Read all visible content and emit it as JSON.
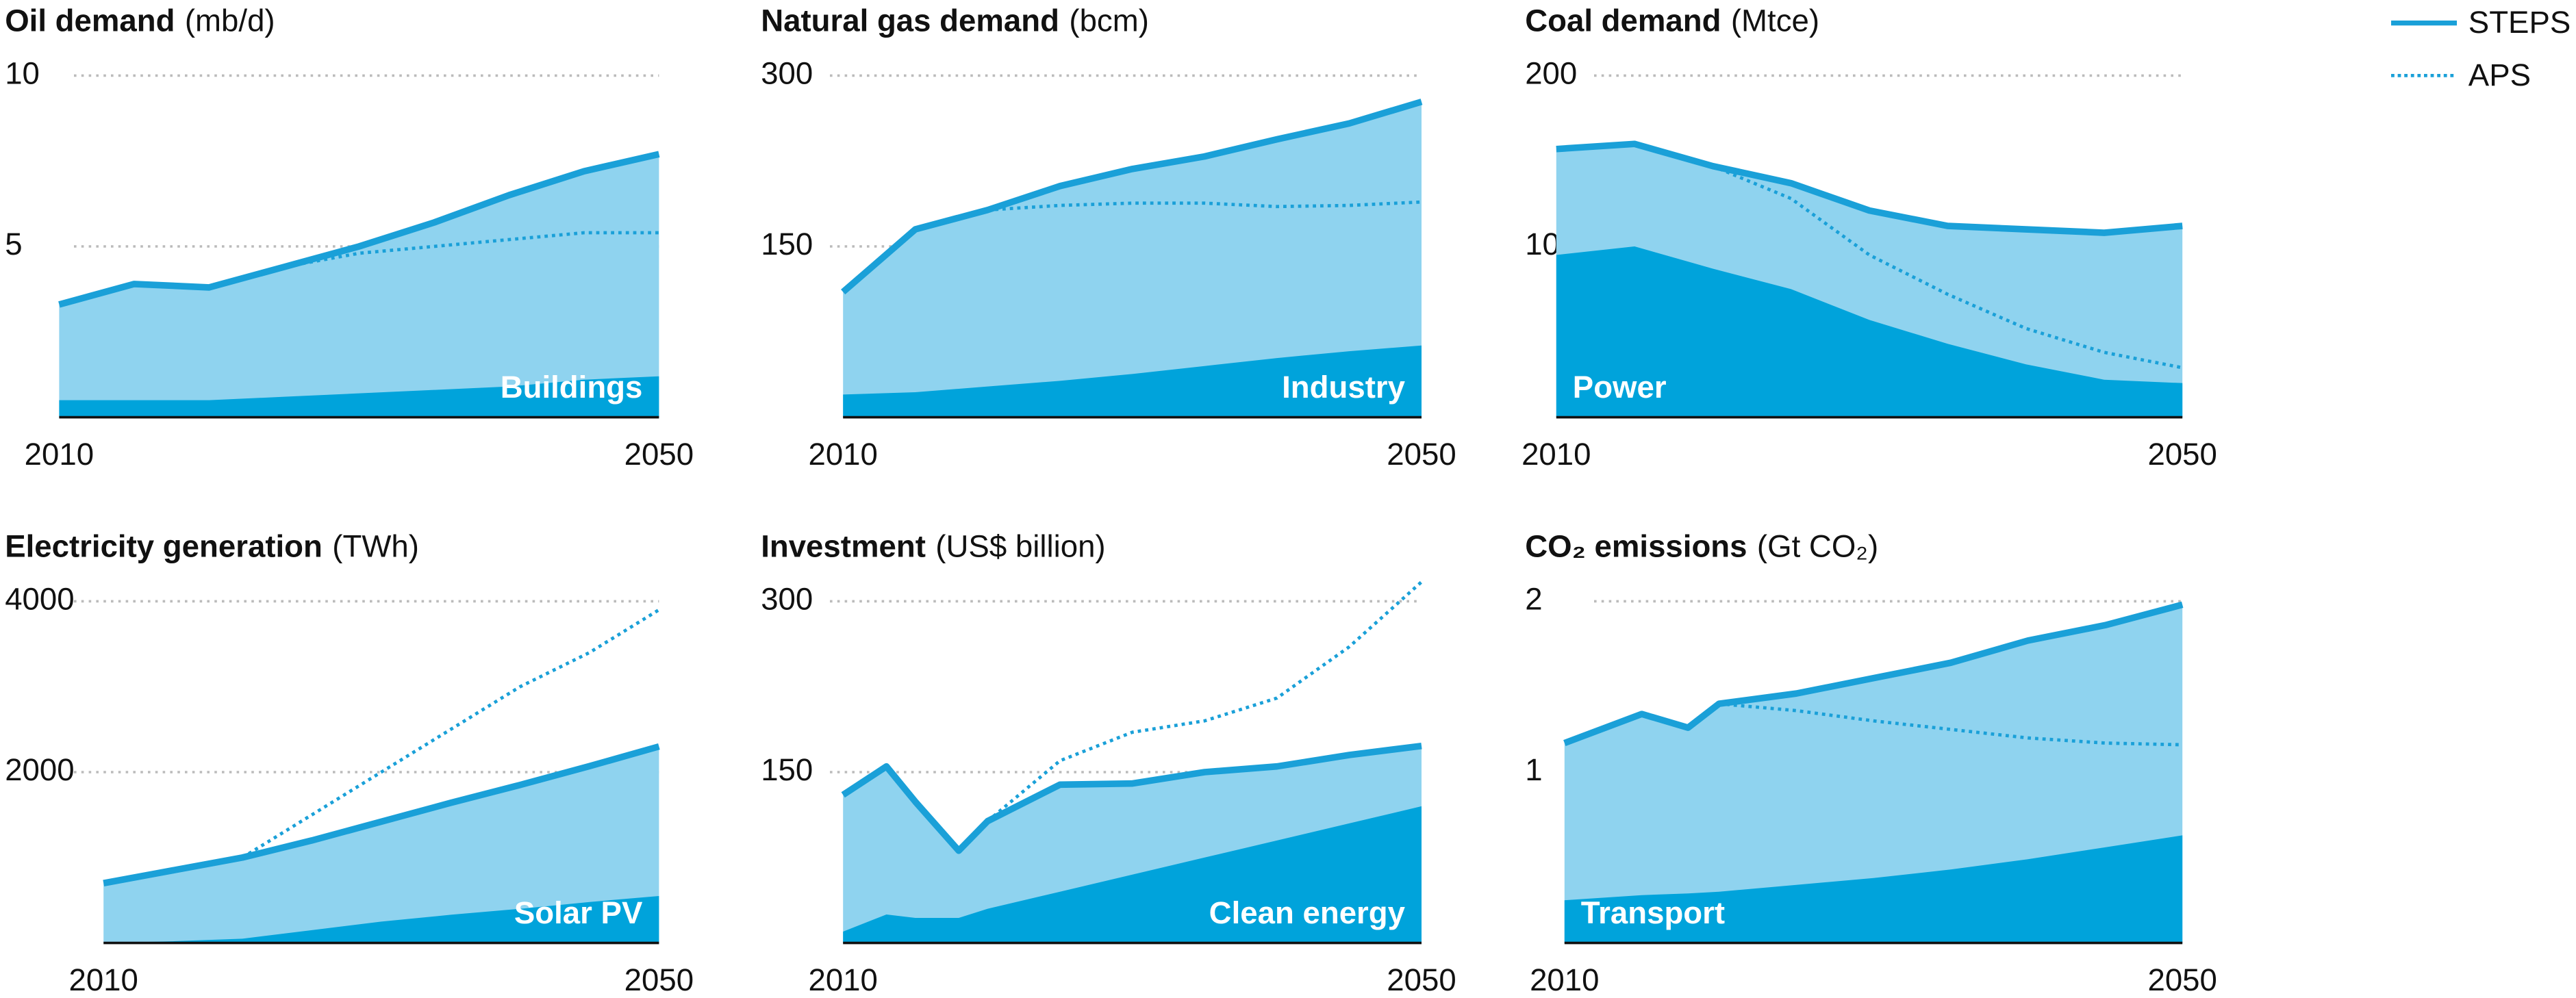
{
  "chart_data": [
    {
      "type": "area",
      "title": "Oil demand",
      "unit": "(mb/d)",
      "label_position": "right",
      "x": [
        2010,
        2015,
        2020,
        2025,
        2030,
        2035,
        2040,
        2045,
        2050
      ],
      "xlim": [
        2010,
        2050
      ],
      "xticks": [
        2010,
        2050
      ],
      "ylim": [
        0,
        10
      ],
      "yticks": [
        5,
        10
      ],
      "grid": true,
      "series": [
        {
          "name": "STEPS",
          "color": "#1aa0d8",
          "values": [
            3.3,
            3.9,
            3.8,
            4.4,
            5.0,
            5.7,
            6.5,
            7.2,
            7.7
          ]
        },
        {
          "name": "APS",
          "color": "#1aa0d8",
          "style": "dotted",
          "values": [
            null,
            null,
            3.8,
            4.4,
            4.8,
            5.0,
            5.2,
            5.4,
            5.4
          ]
        },
        {
          "name": "Buildings",
          "color": "#00a3db",
          "values": [
            0.5,
            0.5,
            0.5,
            0.6,
            0.7,
            0.8,
            0.9,
            1.1,
            1.2
          ]
        }
      ]
    },
    {
      "type": "area",
      "title": "Natural gas demand",
      "unit": "(bcm)",
      "label_position": "right",
      "x": [
        2010,
        2015,
        2020,
        2025,
        2030,
        2035,
        2040,
        2045,
        2050
      ],
      "xlim": [
        2010,
        2050
      ],
      "xticks": [
        2010,
        2050
      ],
      "ylim": [
        0,
        300
      ],
      "yticks": [
        150,
        300
      ],
      "grid": true,
      "series": [
        {
          "name": "STEPS",
          "color": "#1aa0d8",
          "values": [
            110,
            165,
            182,
            203,
            218,
            229,
            244,
            258,
            277
          ]
        },
        {
          "name": "APS",
          "color": "#1aa0d8",
          "style": "dotted",
          "values": [
            null,
            null,
            182,
            186,
            188,
            188,
            185,
            186,
            189
          ]
        },
        {
          "name": "Industry",
          "color": "#00a3db",
          "values": [
            20,
            22,
            27,
            32,
            38,
            45,
            52,
            58,
            63
          ]
        }
      ]
    },
    {
      "type": "area",
      "title": "Coal demand",
      "unit": "(Mtce)",
      "label_position": "left",
      "x": [
        2010,
        2015,
        2020,
        2025,
        2030,
        2035,
        2040,
        2045,
        2050
      ],
      "xlim": [
        2010,
        2050
      ],
      "xticks": [
        2010,
        2050
      ],
      "ylim": [
        0,
        200
      ],
      "yticks": [
        100,
        200
      ],
      "grid": true,
      "series": [
        {
          "name": "STEPS",
          "color": "#1aa0d8",
          "values": [
            157,
            160,
            147,
            137,
            121,
            112,
            110,
            108,
            112
          ]
        },
        {
          "name": "APS",
          "color": "#1aa0d8",
          "style": "dotted",
          "values": [
            null,
            null,
            147,
            128,
            95,
            72,
            52,
            38,
            29
          ]
        },
        {
          "name": "Power",
          "color": "#00a3db",
          "values": [
            95,
            100,
            87,
            75,
            57,
            43,
            31,
            22,
            20
          ]
        }
      ]
    },
    {
      "type": "area",
      "title": "Electricity generation",
      "unit": "(TWh)",
      "label_position": "right",
      "x": [
        2010,
        2015,
        2020,
        2025,
        2030,
        2035,
        2040,
        2045,
        2050
      ],
      "xlim": [
        2010,
        2050
      ],
      "xticks": [
        2010,
        2050
      ],
      "ylim": [
        0,
        4000
      ],
      "yticks": [
        2000,
        4000
      ],
      "grid": true,
      "series": [
        {
          "name": "STEPS",
          "color": "#1aa0d8",
          "values": [
            700,
            850,
            1000,
            1200,
            1420,
            1640,
            1850,
            2070,
            2300
          ]
        },
        {
          "name": "APS",
          "color": "#1aa0d8",
          "style": "dotted",
          "values": [
            null,
            null,
            1000,
            1500,
            2000,
            2500,
            3000,
            3400,
            3900
          ]
        },
        {
          "name": "Solar PV",
          "color": "#00a3db",
          "values": [
            0,
            20,
            50,
            150,
            250,
            330,
            400,
            480,
            550
          ]
        }
      ]
    },
    {
      "type": "area",
      "title": "Investment",
      "unit": "(US$ billion)",
      "label_position": "right",
      "x": [
        2010,
        2013,
        2015,
        2018,
        2020,
        2025,
        2030,
        2035,
        2040,
        2045,
        2050
      ],
      "xlim": [
        2010,
        2050
      ],
      "xticks": [
        2010,
        2050
      ],
      "ylim": [
        0,
        300
      ],
      "yticks": [
        150,
        300
      ],
      "grid": true,
      "series": [
        {
          "name": "STEPS",
          "color": "#1aa0d8",
          "values": [
            130,
            155,
            124,
            81,
            107,
            139,
            140,
            150,
            155,
            165,
            173
          ]
        },
        {
          "name": "APS",
          "color": "#1aa0d8",
          "style": "dotted",
          "values": [
            null,
            null,
            null,
            null,
            107,
            160,
            185,
            195,
            215,
            260,
            317
          ]
        },
        {
          "name": "Clean energy",
          "color": "#00a3db",
          "values": [
            10,
            25,
            22,
            22,
            30,
            45,
            60,
            75,
            90,
            105,
            120
          ]
        }
      ]
    },
    {
      "type": "area",
      "title": "CO₂ emissions",
      "unit": "(Gt CO₂)",
      "label_position": "left",
      "x": [
        2010,
        2015,
        2018,
        2020,
        2025,
        2030,
        2035,
        2040,
        2045,
        2050
      ],
      "xlim": [
        2010,
        2050
      ],
      "xticks": [
        2010,
        2050
      ],
      "ylim": [
        0,
        2
      ],
      "yticks": [
        1,
        2
      ],
      "grid": true,
      "series": [
        {
          "name": "STEPS",
          "color": "#1aa0d8",
          "values": [
            1.17,
            1.34,
            1.26,
            1.4,
            1.46,
            1.55,
            1.64,
            1.77,
            1.86,
            1.98
          ]
        },
        {
          "name": "APS",
          "color": "#1aa0d8",
          "style": "dotted",
          "values": [
            null,
            null,
            null,
            1.4,
            1.36,
            1.3,
            1.25,
            1.2,
            1.17,
            1.16
          ]
        },
        {
          "name": "Transport",
          "color": "#00a3db",
          "values": [
            0.25,
            0.28,
            0.29,
            0.3,
            0.34,
            0.38,
            0.43,
            0.49,
            0.56,
            0.63
          ]
        }
      ]
    }
  ]
}
